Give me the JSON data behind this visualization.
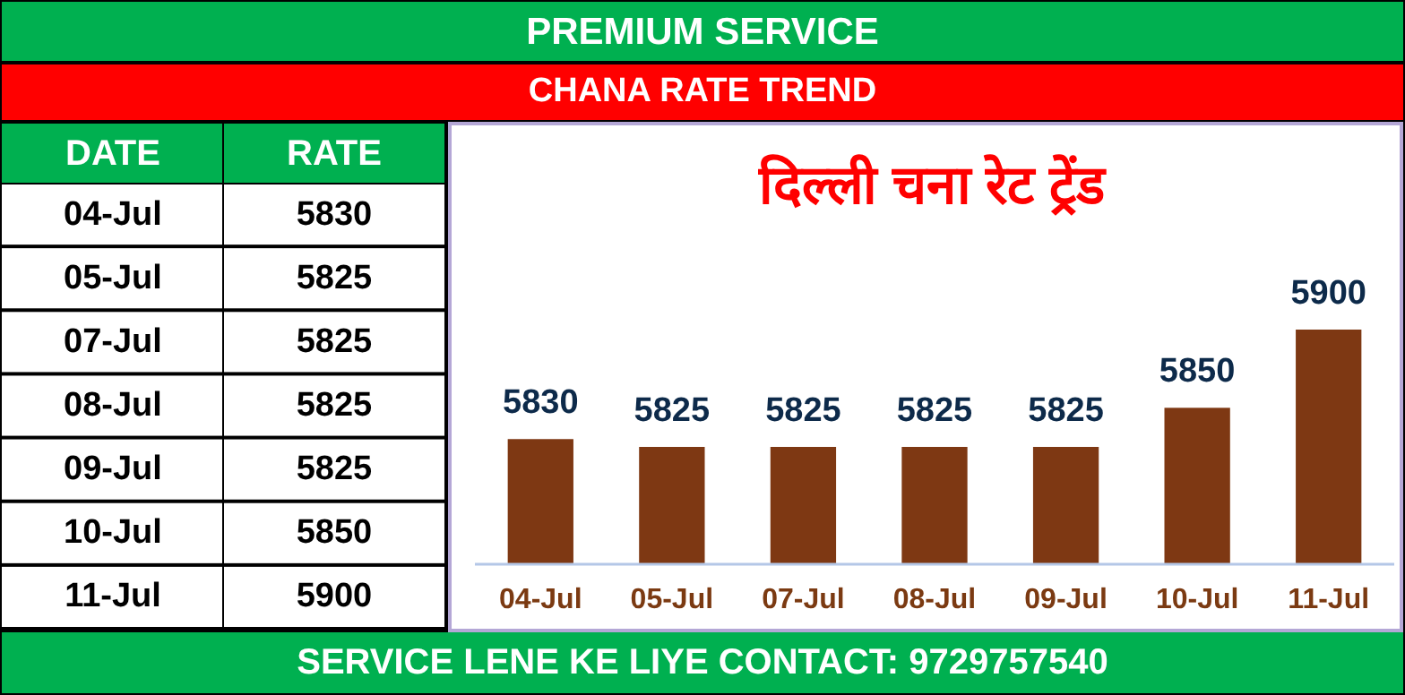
{
  "chart_data": [
    {
      "type": "other",
      "annotations": [
        "DATE",
        "RATE"
      ],
      "categories": [
        "04-Jul",
        "05-Jul",
        "07-Jul",
        "08-Jul",
        "09-Jul",
        "10-Jul",
        "11-Jul"
      ],
      "values": [
        5830,
        5825,
        5825,
        5825,
        5825,
        5850,
        5900
      ],
      "data_labels": true
    },
    {
      "type": "bar",
      "title": "दिल्ली चना रेट ट्रेंड",
      "subtitle": "CHANA RATE TREND",
      "categories": [
        "04-Jul",
        "05-Jul",
        "07-Jul",
        "08-Jul",
        "09-Jul",
        "10-Jul",
        "11-Jul"
      ],
      "values": [
        5830,
        5825,
        5825,
        5825,
        5825,
        5850,
        5900
      ],
      "color": "#7e3813",
      "ylim": [
        5750,
        5900
      ],
      "data_labels": true,
      "annotations": [
        "PREMIUM SERVICE",
        "SERVICE LENE KE LIYE CONTACT: 9729757540"
      ]
    }
  ]
}
